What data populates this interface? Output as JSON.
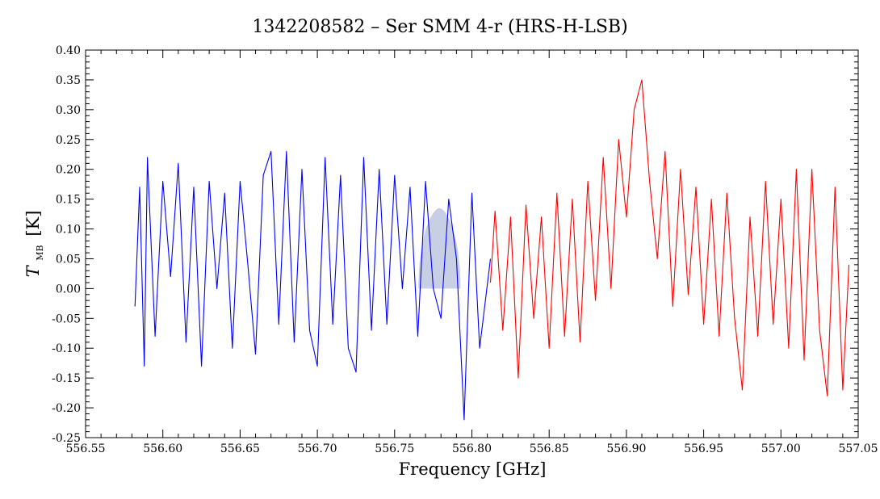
{
  "chart_data": {
    "type": "line",
    "title": "1342208582 – Ser SMM 4-r (HRS-H-LSB)",
    "xlabel": "Frequency [GHz]",
    "ylabel_main": "T",
    "ylabel_sub": "MB",
    "ylabel_unit": "[K]",
    "xlim": [
      556.55,
      557.05
    ],
    "ylim": [
      -0.25,
      0.4
    ],
    "x_ticks": [
      "556.55",
      "556.60",
      "556.65",
      "556.70",
      "556.75",
      "556.80",
      "556.85",
      "556.90",
      "556.95",
      "557.00",
      "557.05"
    ],
    "y_ticks": [
      "0.40",
      "0.35",
      "0.30",
      "0.25",
      "0.20",
      "0.15",
      "0.10",
      "0.05",
      "0.00",
      "-0.05",
      "-0.10",
      "-0.15",
      "-0.20",
      "-0.25"
    ],
    "grid": false,
    "series": [
      {
        "color": "#0000ff",
        "x": [
          556.582,
          556.585,
          556.588,
          556.59,
          556.595,
          556.6,
          556.605,
          556.61,
          556.615,
          556.62,
          556.625,
          556.63,
          556.635,
          556.64,
          556.645,
          556.65,
          556.655,
          556.66,
          556.665,
          556.67,
          556.675,
          556.68,
          556.685,
          556.69,
          556.695,
          556.7,
          556.705,
          556.71,
          556.715,
          556.72,
          556.725,
          556.73,
          556.735,
          556.74,
          556.745,
          556.75,
          556.755,
          556.76,
          556.765,
          556.77,
          556.775,
          556.78,
          556.785,
          556.79,
          556.795,
          556.8,
          556.805,
          556.812
        ],
        "y": [
          -0.03,
          0.17,
          -0.13,
          0.22,
          -0.08,
          0.18,
          0.02,
          0.21,
          -0.09,
          0.17,
          -0.13,
          0.18,
          0.0,
          0.16,
          -0.1,
          0.18,
          0.04,
          -0.11,
          0.19,
          0.23,
          -0.06,
          0.23,
          -0.09,
          0.2,
          -0.07,
          -0.13,
          0.22,
          -0.06,
          0.19,
          -0.1,
          -0.14,
          0.22,
          -0.07,
          0.2,
          -0.06,
          0.19,
          0.0,
          0.17,
          -0.08,
          0.18,
          0.0,
          -0.05,
          0.15,
          0.05,
          -0.22,
          0.16,
          -0.1,
          0.05
        ]
      },
      {
        "color": "#ff0000",
        "x": [
          556.812,
          556.815,
          556.82,
          556.825,
          556.83,
          556.835,
          556.84,
          556.845,
          556.85,
          556.855,
          556.86,
          556.865,
          556.87,
          556.875,
          556.88,
          556.885,
          556.89,
          556.895,
          556.9,
          556.905,
          556.91,
          556.915,
          556.92,
          556.925,
          556.93,
          556.935,
          556.94,
          556.945,
          556.95,
          556.955,
          556.96,
          556.965,
          556.97,
          556.975,
          556.98,
          556.985,
          556.99,
          556.995,
          557.0,
          557.005,
          557.01,
          557.015,
          557.02,
          557.025,
          557.03,
          557.035,
          557.04,
          557.044
        ],
        "y": [
          0.01,
          0.13,
          -0.07,
          0.12,
          -0.15,
          0.14,
          -0.05,
          0.12,
          -0.1,
          0.16,
          -0.08,
          0.15,
          -0.09,
          0.18,
          -0.02,
          0.22,
          0.0,
          0.25,
          0.12,
          0.3,
          0.35,
          0.18,
          0.05,
          0.23,
          -0.03,
          0.2,
          -0.01,
          0.17,
          -0.06,
          0.15,
          -0.08,
          0.16,
          -0.05,
          -0.17,
          0.12,
          -0.08,
          0.18,
          -0.06,
          0.15,
          -0.1,
          0.2,
          -0.12,
          0.2,
          -0.07,
          -0.18,
          0.17,
          -0.17,
          0.04
        ]
      }
    ],
    "shaded_feature": {
      "x_center": 556.779,
      "y_peak": 0.135,
      "color": "#9aa8d0"
    }
  }
}
